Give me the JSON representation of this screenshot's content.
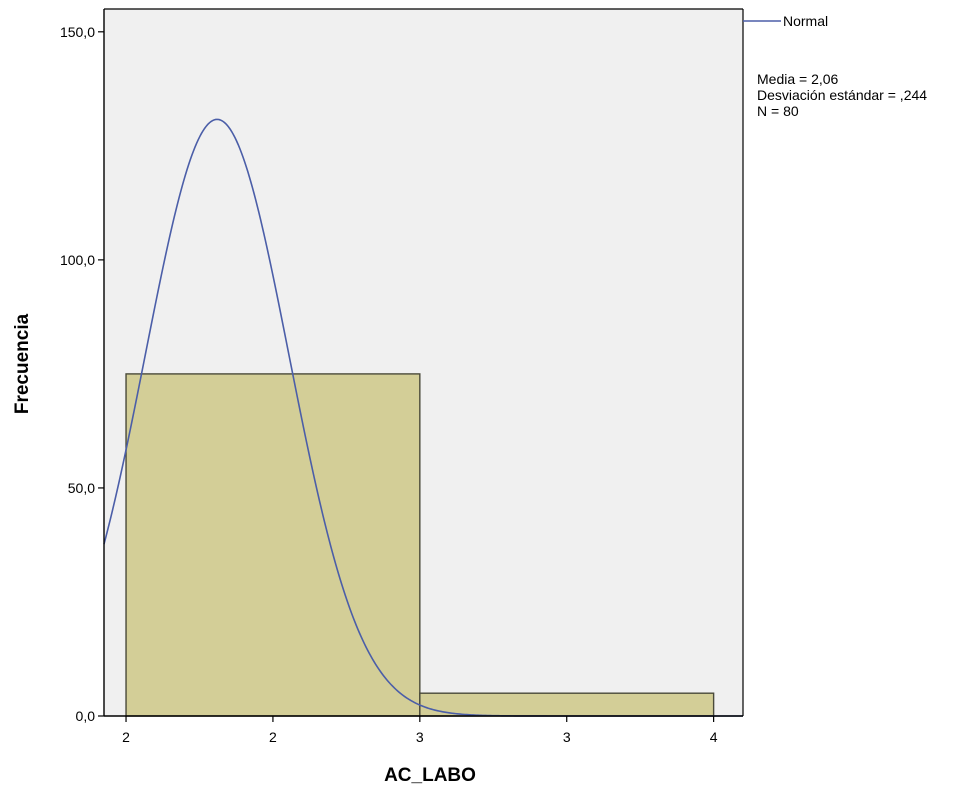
{
  "chart_data": {
    "type": "histogram",
    "title": "",
    "xlabel": "AC_LABO",
    "ylabel": "Frecuencia",
    "ylim": [
      0,
      155
    ],
    "xlim": [
      1.675,
      3.85
    ],
    "yticks": [
      0,
      50,
      100,
      150
    ],
    "ytick_labels": [
      "0,0",
      "50,0",
      "100,0",
      "150,0"
    ],
    "xticks": [
      {
        "x": 1.75,
        "label": "2"
      },
      {
        "x": 2.25,
        "label": "2"
      },
      {
        "x": 2.75,
        "label": "3"
      },
      {
        "x": 3.25,
        "label": "3"
      },
      {
        "x": 3.75,
        "label": "4"
      }
    ],
    "bins": [
      {
        "x0": 1.75,
        "x1": 2.75,
        "count": 75
      },
      {
        "x0": 2.75,
        "x1": 3.75,
        "count": 5
      }
    ],
    "normal_curve": {
      "mean": 2.06,
      "sd": 0.244,
      "n": 80,
      "bin_width": 1.0
    },
    "legend": {
      "series_label": "Normal",
      "position": "top-right"
    },
    "stats": [
      "Media = 2,06",
      "Desviación estándar = ,244",
      "N = 80"
    ],
    "grid": false,
    "colors": {
      "plot_bg": "#f0f0f0",
      "bar_fill": "#d3ce97",
      "bar_stroke": "#4a4a3a",
      "curve": "#4b5ea8",
      "axis": "#000000"
    }
  }
}
